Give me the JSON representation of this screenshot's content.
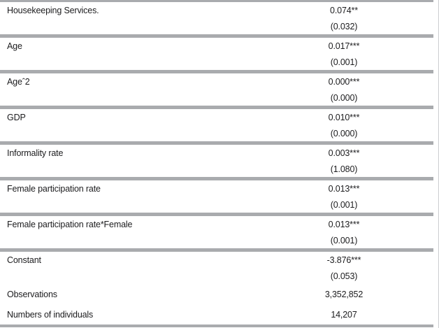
{
  "table": {
    "rows": [
      {
        "label": "Housekeeping Services.",
        "coef": "0.074**",
        "se": "(0.032)"
      },
      {
        "label": "Age",
        "coef": "0.017***",
        "se": "(0.001)"
      },
      {
        "label": "Ageˆ2",
        "coef": "0.000***",
        "se": "(0.000)"
      },
      {
        "label": "GDP",
        "coef": "0.010***",
        "se": "(0.000)"
      },
      {
        "label": "Informality rate",
        "coef": "0.003***",
        "se": "(1.080)"
      },
      {
        "label": "Female participation rate",
        "coef": "0.013***",
        "se": "(0.001)"
      },
      {
        "label": "Female participation rate*Female",
        "coef": "0.013***",
        "se": "(0.001)"
      },
      {
        "label": "Constant",
        "coef": "-3.876***",
        "se": "(0.053)"
      }
    ],
    "summary_rows": [
      {
        "label": "Observations",
        "value": "3,352,852"
      },
      {
        "label": "Numbers of individuals",
        "value": "14,207"
      }
    ]
  },
  "colors": {
    "rule": "#a9abae",
    "text": "#1c1c1e",
    "background": "#ffffff"
  }
}
